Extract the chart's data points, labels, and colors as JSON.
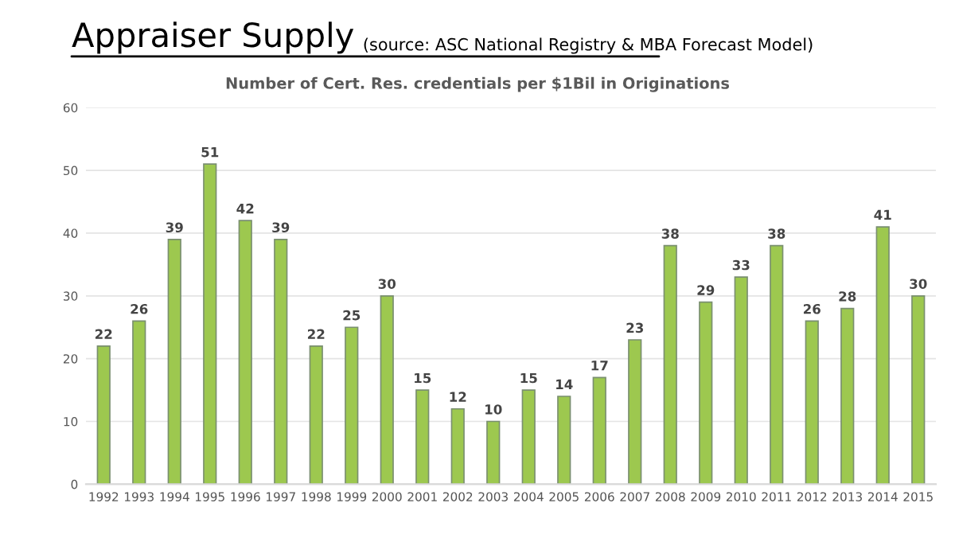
{
  "chart_data": {
    "type": "bar",
    "title": "Appraiser Supply",
    "subtitle": "Number of Cert. Res. credentials per $1Bil in Originations",
    "annotations": [
      "(source: ASC National Registry & MBA Forecast Model)"
    ],
    "categories": [
      "1992",
      "1993",
      "1994",
      "1995",
      "1996",
      "1997",
      "1998",
      "1999",
      "2000",
      "2001",
      "2002",
      "2003",
      "2004",
      "2005",
      "2006",
      "2007",
      "2008",
      "2009",
      "2010",
      "2011",
      "2012",
      "2013",
      "2014",
      "2015"
    ],
    "values": [
      22,
      26,
      39,
      51,
      42,
      39,
      22,
      25,
      30,
      15,
      12,
      10,
      15,
      14,
      17,
      23,
      38,
      29,
      33,
      38,
      26,
      28,
      41,
      30
    ],
    "color": "#9dc84f",
    "ylim": [
      0,
      60
    ],
    "yticks": [
      0,
      10,
      20,
      30,
      40,
      50,
      60
    ],
    "grid": "y",
    "data_labels": true
  }
}
